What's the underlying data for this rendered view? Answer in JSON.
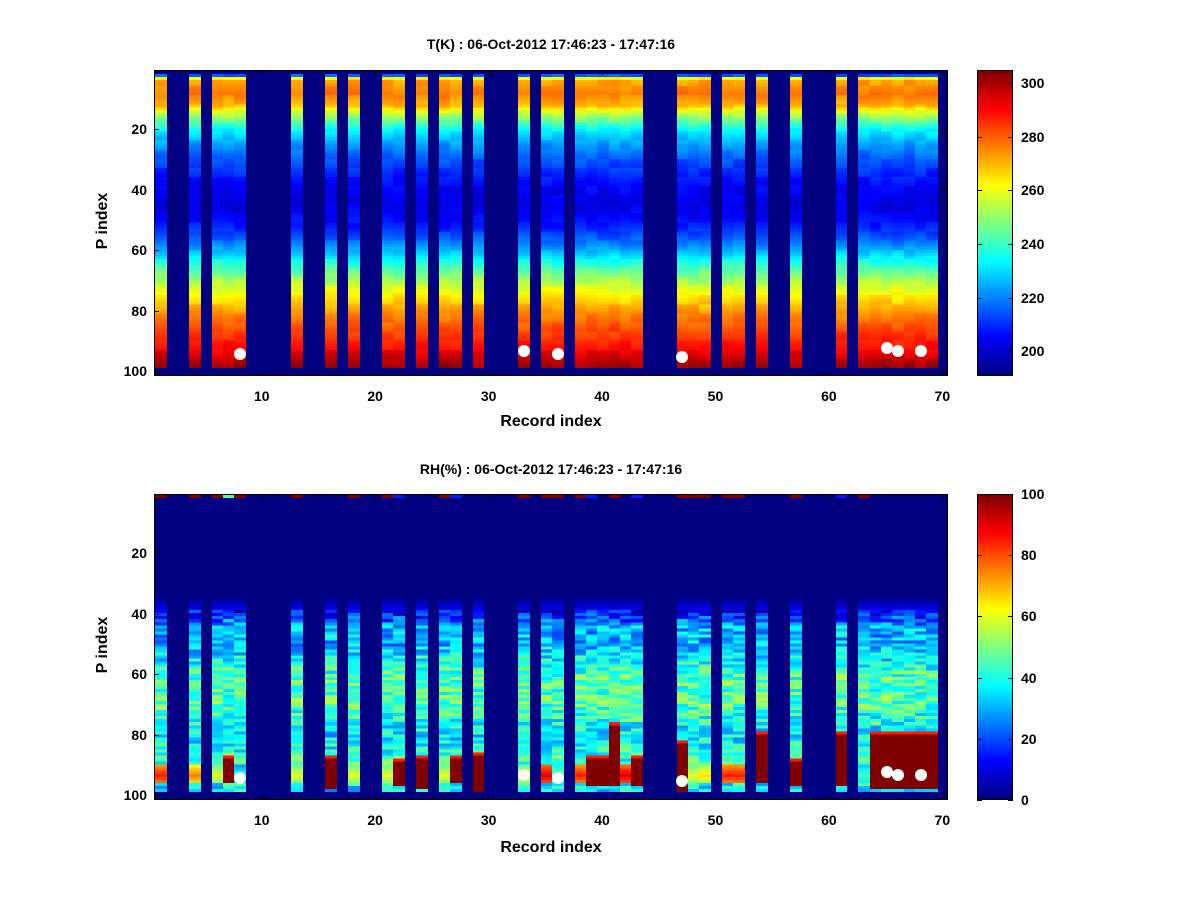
{
  "chart_data": [
    {
      "type": "heatmap",
      "title": "T(K) : 06-Oct-2012 17:46:23 - 17:47:16",
      "xlabel": "Record index",
      "ylabel": "P index",
      "xlim": [
        0.5,
        70.5
      ],
      "ylim": [
        0.5,
        101.5
      ],
      "y_reversed": true,
      "x_ticks": [
        10,
        20,
        30,
        40,
        50,
        60,
        70
      ],
      "y_ticks": [
        20,
        40,
        60,
        80,
        100
      ],
      "colormap": "jet",
      "clim": [
        190.7,
        305
      ],
      "colorbar_ticks": [
        200,
        220,
        240,
        260,
        280,
        300
      ],
      "records_with_data": [
        1,
        4,
        6,
        7,
        8,
        13,
        16,
        18,
        21,
        22,
        24,
        26,
        27,
        29,
        33,
        35,
        36,
        38,
        39,
        40,
        41,
        42,
        43,
        47,
        48,
        49,
        51,
        52,
        54,
        57,
        61,
        63,
        64,
        65,
        66,
        67,
        68,
        69
      ],
      "valid_p_range": [
        2,
        98
      ],
      "mean_profile": {
        "p": [
          2,
          3,
          4,
          8,
          12,
          14,
          17,
          20,
          25,
          30,
          38,
          45,
          52,
          58,
          62,
          66,
          72,
          76,
          80,
          86,
          92,
          96,
          98
        ],
        "value": [
          215,
          262,
          272,
          277,
          270,
          258,
          245,
          233,
          222,
          214,
          205,
          202,
          208,
          220,
          232,
          243,
          258,
          266,
          274,
          283,
          290,
          298,
          301
        ]
      },
      "markers": [
        {
          "record": 8,
          "p": 94
        },
        {
          "record": 33,
          "p": 93
        },
        {
          "record": 36,
          "p": 94
        },
        {
          "record": 47,
          "p": 95
        },
        {
          "record": 65,
          "p": 92
        },
        {
          "record": 66,
          "p": 93
        },
        {
          "record": 68,
          "p": 93
        }
      ]
    },
    {
      "type": "heatmap",
      "title": "RH(%) : 06-Oct-2012 17:46:23 - 17:47:16",
      "xlabel": "Record index",
      "ylabel": "P index",
      "xlim": [
        0.5,
        70.5
      ],
      "ylim": [
        0.5,
        101.5
      ],
      "y_reversed": true,
      "x_ticks": [
        10,
        20,
        30,
        40,
        50,
        60,
        70
      ],
      "y_ticks": [
        20,
        40,
        60,
        80,
        100
      ],
      "colormap": "jet",
      "clim": [
        0,
        100
      ],
      "colorbar_ticks": [
        0,
        20,
        40,
        60,
        80,
        100
      ],
      "valid_p_range": [
        1,
        98
      ],
      "mean_profile": {
        "p": [
          1,
          2,
          34,
          36,
          40,
          44,
          50,
          60,
          70,
          80,
          90,
          98
        ],
        "value": [
          0,
          0,
          0,
          5,
          15,
          30,
          30,
          45,
          45,
          35,
          45,
          35
        ]
      },
      "columns": [
        {
          "record": 1,
          "top": 100,
          "peak": 85
        },
        {
          "record": 4,
          "top": 100,
          "peak": 75
        },
        {
          "record": 6,
          "top": 100,
          "peak": 60
        },
        {
          "record": 7,
          "top": 45,
          "sat": [
            88,
            95
          ]
        },
        {
          "record": 8,
          "top": 100,
          "peak": 40
        },
        {
          "record": 13,
          "top": 100,
          "peak": 60
        },
        {
          "record": 16,
          "top": 0,
          "sat": [
            88,
            97
          ]
        },
        {
          "record": 18,
          "top": 100,
          "peak": 60
        },
        {
          "record": 21,
          "top": 100,
          "peak": 60
        },
        {
          "record": 22,
          "top": 15,
          "sat": [
            89,
            96
          ]
        },
        {
          "record": 24,
          "top": 0,
          "sat": [
            88,
            97
          ]
        },
        {
          "record": 26,
          "top": 100,
          "peak": 60
        },
        {
          "record": 27,
          "top": 15,
          "sat": [
            88,
            95
          ]
        },
        {
          "record": 29,
          "top": 0,
          "sat": [
            87,
            98
          ]
        },
        {
          "record": 33,
          "top": 100,
          "peak": 60
        },
        {
          "record": 35,
          "top": 100,
          "peak": 90
        },
        {
          "record": 36,
          "top": 100,
          "peak": 50
        },
        {
          "record": 38,
          "top": 100,
          "peak": 85
        },
        {
          "record": 39,
          "top": 15,
          "sat": [
            88,
            96
          ]
        },
        {
          "record": 40,
          "top": 0,
          "sat": [
            88,
            96
          ]
        },
        {
          "record": 41,
          "top": 100,
          "sat": [
            77,
            96
          ]
        },
        {
          "record": 42,
          "top": 0,
          "peak": 90
        },
        {
          "record": 43,
          "top": 15,
          "sat": [
            88,
            96
          ]
        },
        {
          "record": 47,
          "top": 100,
          "sat": [
            83,
            98
          ]
        },
        {
          "record": 48,
          "top": 100,
          "peak": 60
        },
        {
          "record": 49,
          "top": 100,
          "peak": 65
        },
        {
          "record": 51,
          "top": 100,
          "peak": 85
        },
        {
          "record": 52,
          "top": 100,
          "peak": 85
        },
        {
          "record": 54,
          "top": 0,
          "sat": [
            80,
            95
          ]
        },
        {
          "record": 57,
          "top": 100,
          "sat": [
            89,
            96
          ]
        },
        {
          "record": 61,
          "top": 15,
          "sat": [
            80,
            96
          ]
        },
        {
          "record": 63,
          "top": 100,
          "peak": 45
        },
        {
          "record": 64,
          "top": 0,
          "sat": [
            80,
            97
          ]
        },
        {
          "record": 65,
          "top": 0,
          "sat": [
            80,
            97
          ]
        },
        {
          "record": 66,
          "top": 0,
          "sat": [
            80,
            97
          ]
        },
        {
          "record": 67,
          "top": 0,
          "sat": [
            80,
            97
          ]
        },
        {
          "record": 68,
          "top": 0,
          "sat": [
            80,
            97
          ]
        },
        {
          "record": 69,
          "top": 0,
          "sat": [
            80,
            97
          ]
        }
      ],
      "markers": [
        {
          "record": 8,
          "p": 94
        },
        {
          "record": 33,
          "p": 93
        },
        {
          "record": 36,
          "p": 94
        },
        {
          "record": 47,
          "p": 95
        },
        {
          "record": 65,
          "p": 92
        },
        {
          "record": 66,
          "p": 93
        },
        {
          "record": 68,
          "p": 93
        }
      ]
    }
  ]
}
